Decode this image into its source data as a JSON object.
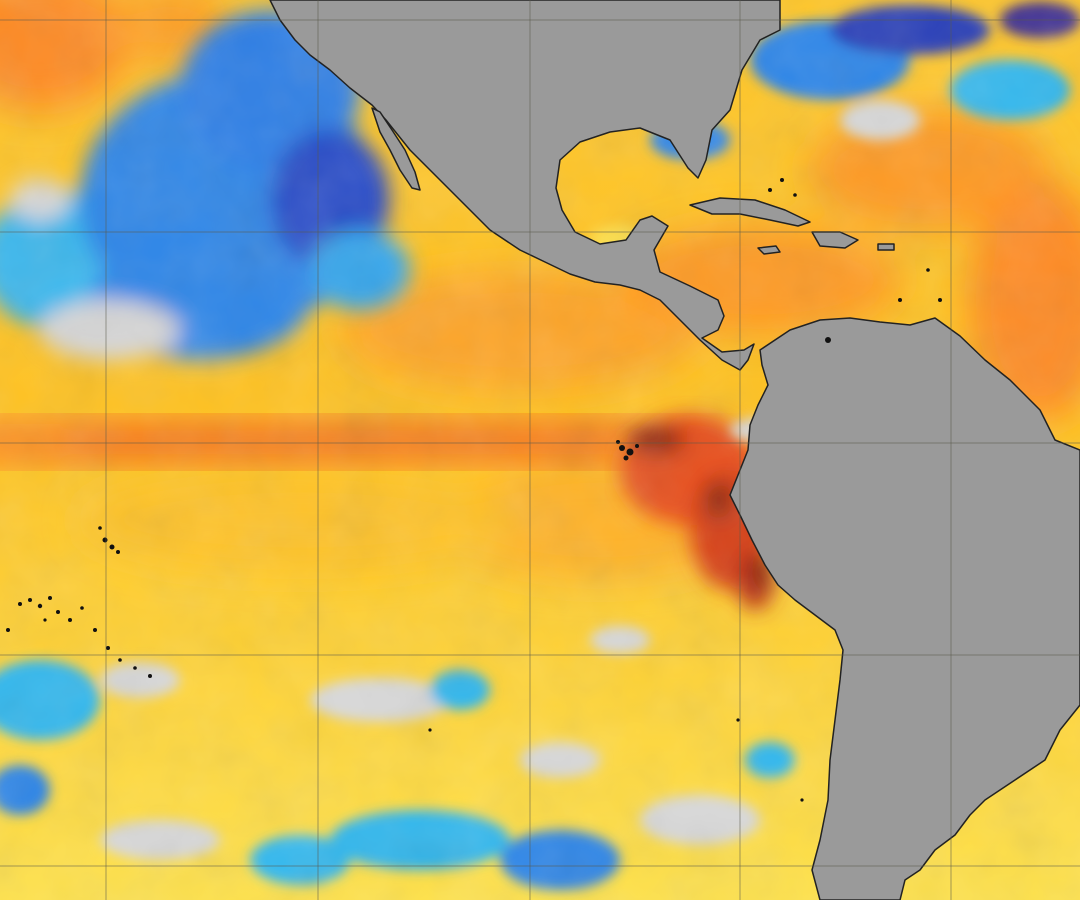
{
  "map": {
    "type": "sea-surface-temperature-anomaly",
    "region": "eastern-tropical-pacific-and-caribbean",
    "colors": {
      "land": "#9a9a9a",
      "coastline": "#222222",
      "gridline": "#5a5a4a",
      "very_cold": "#2a3fb8",
      "cold": "#2f7fe6",
      "cool": "#33b8ee",
      "neutral": "#d8d8d8",
      "warm": "#ffdf2a",
      "warmer": "#ffb020",
      "hot": "#ff8420",
      "very_hot": "#e0401a",
      "extreme": "#7a1a10"
    },
    "features": [
      "equatorial-warm-tongue",
      "peru-coast-hotspot",
      "north-pacific-cold-pool",
      "galapagos-islands",
      "marquesas-islands"
    ]
  }
}
